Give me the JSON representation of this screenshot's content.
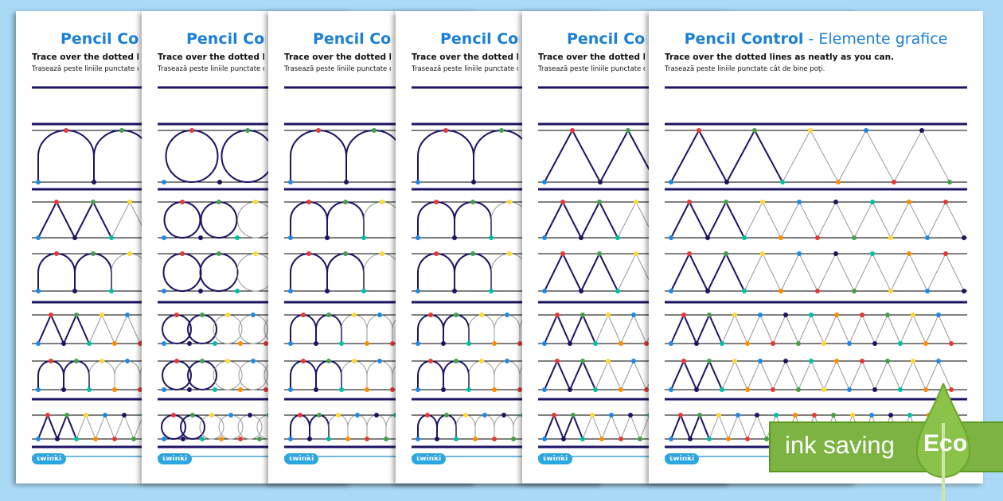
{
  "worksheet": {
    "title_main": "Pencil Control",
    "title_sub": " - Elemente grafice",
    "instruction_en": "Trace over the dotted lines as neatly as you can.",
    "instruction_ro": "Trasează peste liniile punctate cât de bine poţi.",
    "logo": "twinkl"
  },
  "sheets": [
    {
      "pattern": "mixed"
    },
    {
      "pattern": "circles"
    },
    {
      "pattern": "arches"
    },
    {
      "pattern": "arches"
    },
    {
      "pattern": "zigzag"
    },
    {
      "pattern": "zigzag"
    }
  ],
  "badge": {
    "label": "ink saving",
    "eco": "Eco"
  },
  "colors": {
    "title": "#1a7fd6",
    "line": "#1b1464",
    "badge": "#7cb342",
    "dots": [
      "#e53935",
      "#43a047",
      "#fdd835",
      "#1e88e5",
      "#1b1464",
      "#00bfa5",
      "#fb8c00"
    ]
  }
}
